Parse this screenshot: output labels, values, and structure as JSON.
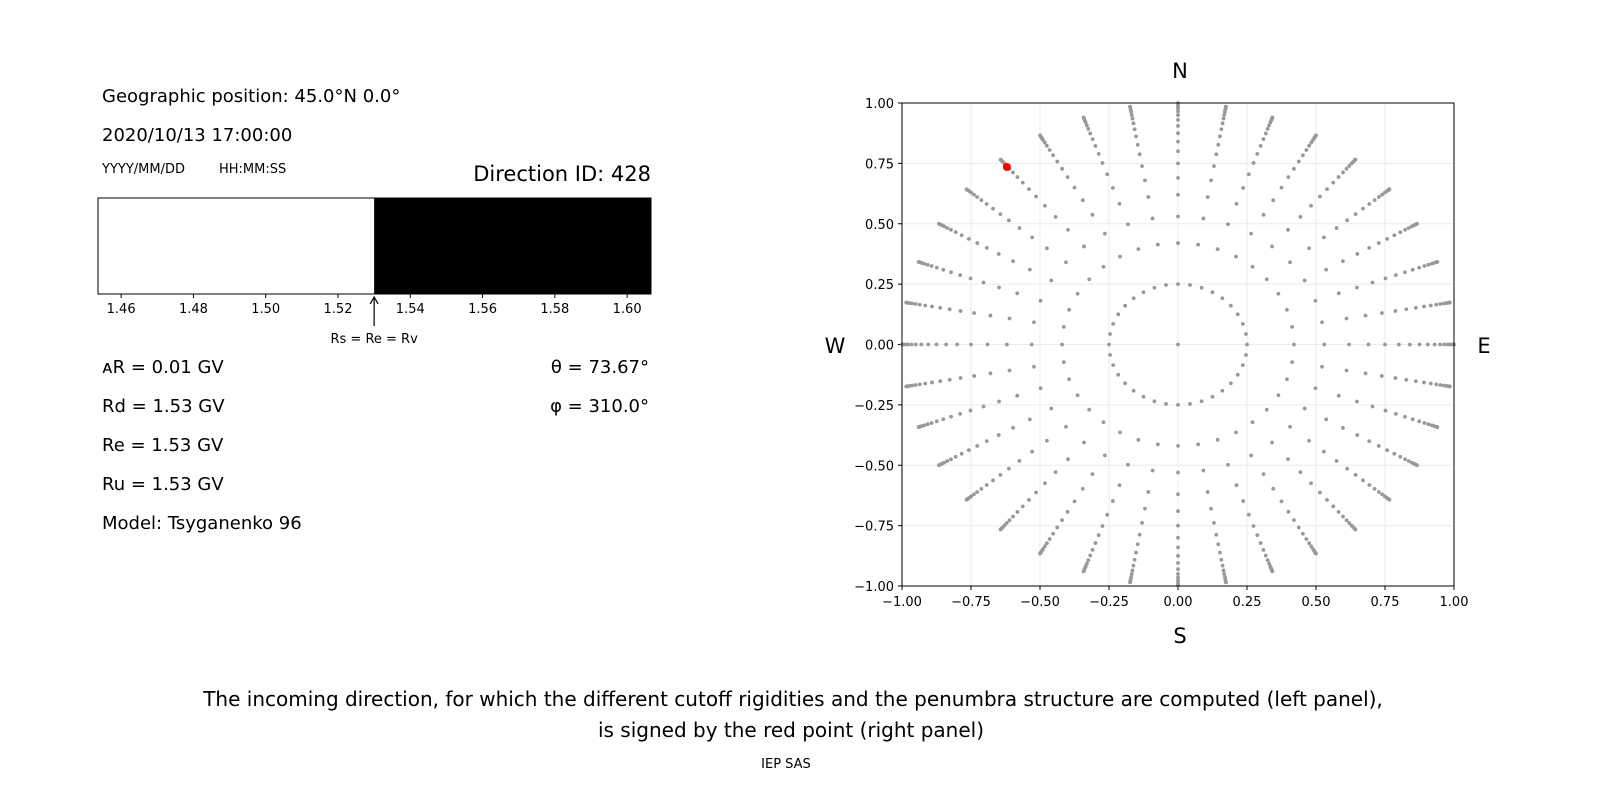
{
  "left_panel": {
    "geo_position": "Geographic position: 45.0°N 0.0°",
    "datetime": "2020/10/13 17:00:00",
    "date_format": "YYYY/MM/DD",
    "time_format": "HH:MM:SS",
    "direction_id": "Direction ID: 428",
    "delta_r": "ᴀR = 0.01 GV",
    "rd": "Rd = 1.53 GV",
    "re": "Re = 1.53 GV",
    "ru": "Ru = 1.53 GV",
    "model": "Model: Tsyganenko 96",
    "theta": "θ = 73.67°",
    "phi": "φ = 310.0°"
  },
  "caption": {
    "line1": "The incoming direction, for which the different cutoff rigidities and the penumbra structure are computed (left panel),",
    "line2": "is signed by the red point (right panel)",
    "credit": "IEP SAS"
  },
  "chart_data": [
    {
      "type": "bar",
      "title": "",
      "xlim": [
        1.4536,
        1.6066
      ],
      "xticks": [
        "1.46",
        "1.48",
        "1.50",
        "1.52",
        "1.54",
        "1.56",
        "1.58",
        "1.60"
      ],
      "segments": [
        {
          "from": 1.4536,
          "to": 1.53,
          "color": "#ffffff",
          "state": "allowed"
        },
        {
          "from": 1.53,
          "to": 1.6066,
          "color": "#000000",
          "state": "forbidden"
        }
      ],
      "annotation": {
        "text": "Rs = Re = Rv",
        "x": 1.53
      }
    },
    {
      "type": "scatter",
      "xlim": [
        -1,
        1
      ],
      "ylim": [
        -1,
        1
      ],
      "grid": true,
      "xticks": [
        "−1.00",
        "−0.75",
        "−0.50",
        "−0.25",
        "0.00",
        "0.25",
        "0.50",
        "0.75",
        "1.00"
      ],
      "yticks": [
        "−1.00",
        "−0.75",
        "−0.50",
        "−0.25",
        "0.00",
        "0.25",
        "0.50",
        "0.75",
        "1.00"
      ],
      "compass": {
        "n": "N",
        "s": "S",
        "e": "E",
        "w": "W"
      },
      "grid_points": {
        "azimuth_step_deg": 10,
        "radii": [
          0.25,
          0.42,
          0.53,
          0.62,
          0.69,
          0.75,
          0.8,
          0.84,
          0.875,
          0.905,
          0.93,
          0.95,
          0.965,
          0.978,
          0.987,
          0.994,
          0.998,
          1.0
        ],
        "center_point": true,
        "color": "#999999"
      },
      "selected_point": {
        "x": -0.62,
        "y": 0.735,
        "color": "#ff0000"
      }
    }
  ]
}
